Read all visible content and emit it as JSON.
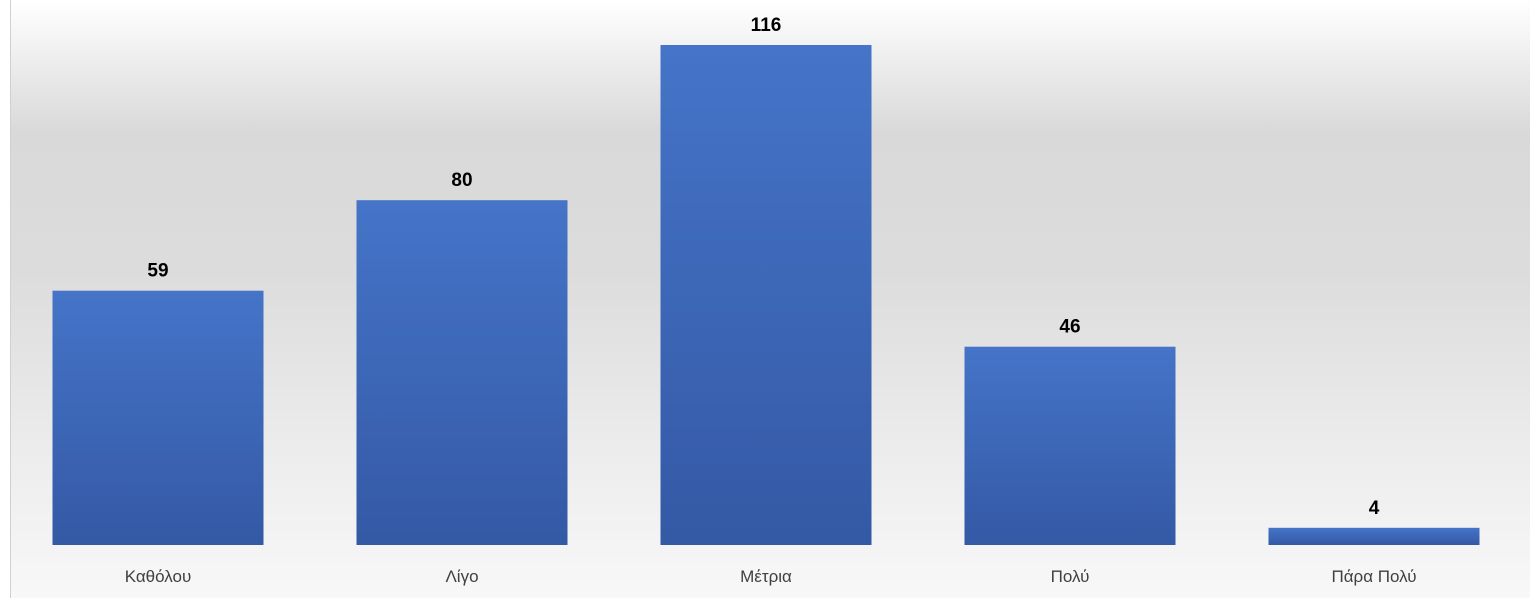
{
  "chart_data": {
    "type": "bar",
    "categories": [
      "Καθόλου",
      "Λίγο",
      "Μέτρια",
      "Πολύ",
      "Πάρα Πολύ"
    ],
    "values": [
      59,
      80,
      116,
      46,
      4
    ],
    "title": "",
    "xlabel": "",
    "ylabel": "",
    "ylim": [
      0,
      116
    ],
    "grid": false,
    "data_labels": true,
    "bar_color": "#4472c4"
  }
}
